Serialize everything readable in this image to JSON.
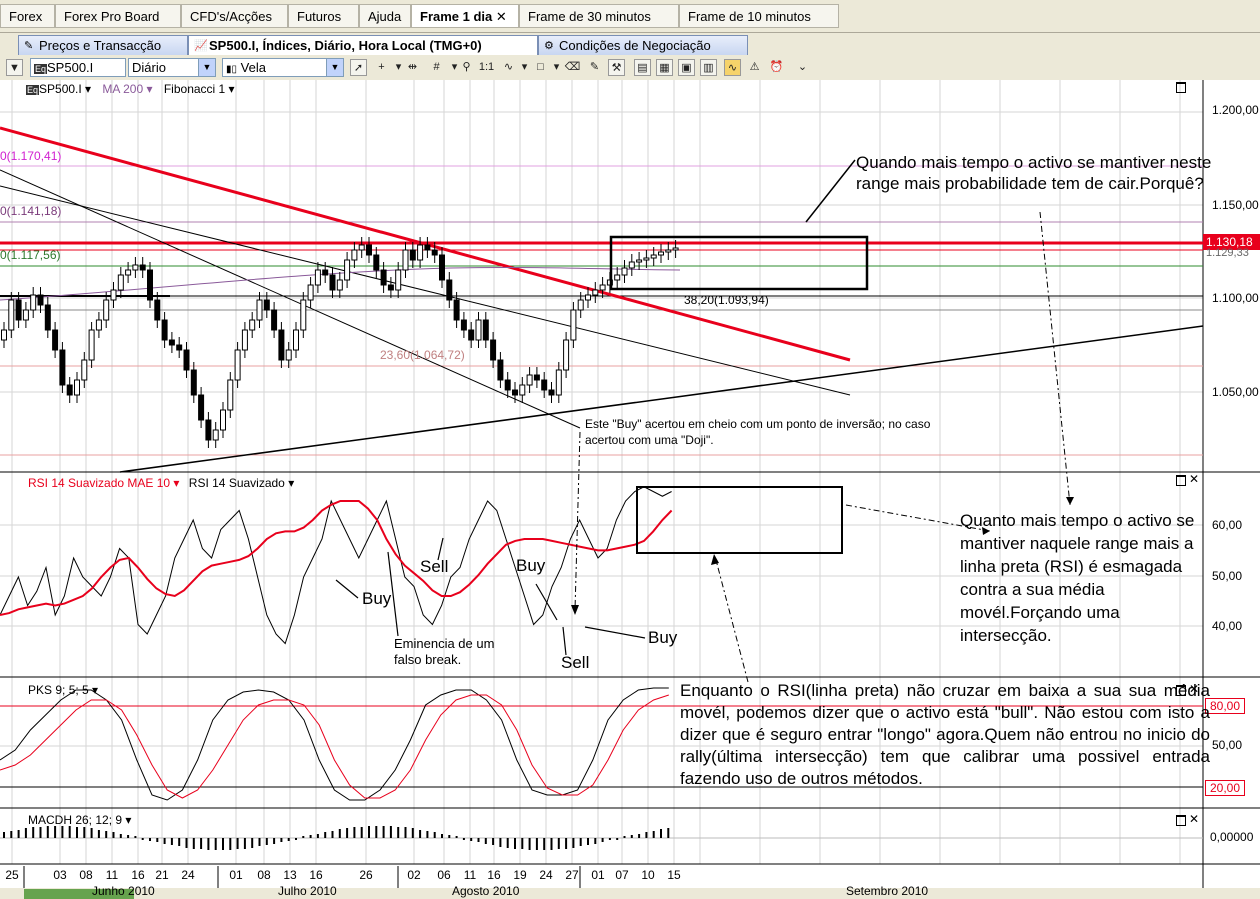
{
  "top_tabs": [
    {
      "label": "Forex"
    },
    {
      "label": "Forex Pro Board"
    },
    {
      "label": "CFD's/Acções"
    },
    {
      "label": "Futuros"
    },
    {
      "label": "Ajuda"
    },
    {
      "label": "Frame 1 dia"
    },
    {
      "label": "Frame de 30 minutos"
    },
    {
      "label": "Frame de 10 minutos"
    }
  ],
  "sub_tabs": [
    {
      "label": "Preços e Transacção"
    },
    {
      "label": "SP500.I, Índices, Diário, Hora Local (TMG+0)"
    },
    {
      "label": "Condições de Negociação"
    }
  ],
  "toolbar": {
    "symbol": "SP500.I",
    "period": "Diário",
    "chart_type": "Vela",
    "symbol_prefix": "Eq",
    "zoom_label": "1:1"
  },
  "price_panel": {
    "prefix": "Eq",
    "symbol": "SP500.I",
    "ma_label": "MA 200",
    "fib_label": "Fibonacci 1",
    "fib_levels": [
      "0(1.170,41)",
      "0(1.141,18)",
      "0(1.117,56)",
      "38,20(1.093,94)",
      "23,60(1.064,72)"
    ],
    "price_badge": "1.130,18",
    "price_badge_sub": "1.129,33",
    "y_ticks": [
      "1.200,00",
      "1.150,00",
      "1.100,00",
      "1.050,00"
    ]
  },
  "rsi_panel": {
    "title_ma": "RSI 14 Suavizado MAE 10",
    "title_rsi": "RSI 14 Suavizado",
    "y_ticks": [
      "60,00",
      "50,00",
      "40,00"
    ]
  },
  "pks_panel": {
    "title": "PKS 9; 5; 5",
    "y_ticks": [
      "80,00",
      "50,00",
      "20,00"
    ]
  },
  "macd_panel": {
    "title": "MACDH 26; 12; 9",
    "y_ticks": [
      "0,00000"
    ]
  },
  "x_axis": {
    "days": [
      "25",
      "03",
      "08",
      "11",
      "16",
      "21",
      "24",
      "01",
      "08",
      "13",
      "16",
      "26",
      "02",
      "06",
      "11",
      "16",
      "19",
      "24",
      "27",
      "01",
      "07",
      "10",
      "15"
    ],
    "months": [
      "Junho 2010",
      "Julho 2010",
      "Agosto 2010",
      "Setembro 2010"
    ]
  },
  "annotations": {
    "note1": "Quando mais tempo o activo se mantiver neste range mais probabilidade tem de cair.Porquê?",
    "note2": "Este \"Buy\" acertou em cheio com um ponto de inversão; no caso acertou com uma \"Doji\".",
    "note3": "Quanto mais tempo o activo se mantiver naquele range mais a linha preta (RSI) é esmagada contra a sua média movél.Forçando uma intersecção.",
    "note4": "Enquanto o RSI(linha preta) não cruzar em baixa a sua sua média movél, podemos dizer que o activo está \"bull\". Não estou com isto a dizer que é seguro entrar \"longo\" agora.Quem não entrou no inicio do rally(última intersecção) tem que calibrar uma possivel entrada fazendo uso de outros métodos.",
    "eminencia": "Eminencia de um falso break.",
    "buy": "Buy",
    "sell": "Sell"
  },
  "colors": {
    "red": "#e8001c",
    "ma_purple": "#8a5a9a",
    "fib_pink": "#d020d0",
    "grid": "#d8d8d8"
  }
}
